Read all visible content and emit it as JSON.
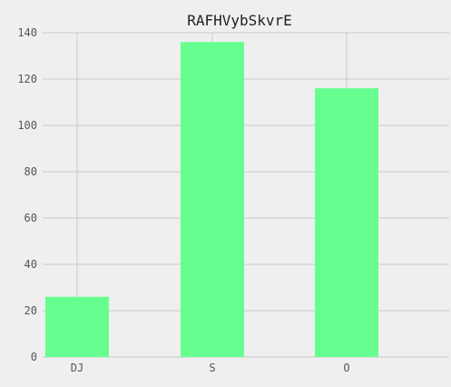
{
  "chart_data": {
    "type": "bar",
    "title": "RAFHVybSkvrE",
    "xlabel": "",
    "ylabel": "",
    "categories": [
      "DJ",
      "S",
      "O"
    ],
    "values": [
      26,
      136,
      116
    ],
    "ylim": [
      0,
      140
    ],
    "yticks": [
      0,
      20,
      40,
      60,
      80,
      100,
      120,
      140
    ],
    "grid": true,
    "legend": "none",
    "bar_color": "#66ff8f",
    "background_color": "#efefef",
    "grid_color": "#c8c8c8"
  }
}
